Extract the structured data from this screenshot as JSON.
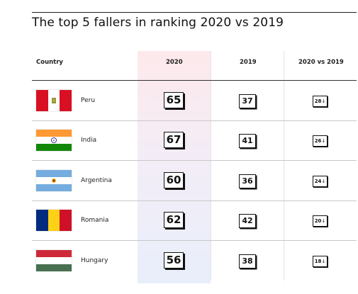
{
  "title": "The top 5 fallers in ranking 2020 vs 2019",
  "headers": {
    "country": "Country",
    "y2020": "2020",
    "y2019": "2019",
    "diff": "2020 vs 2019"
  },
  "arrow": "↓",
  "colors": {
    "highlight_top": "#fde9ec",
    "highlight_bottom": "#e9eefb"
  },
  "rows": [
    {
      "country": "Peru",
      "flag": "peru-flag",
      "y2020": "65",
      "y2019": "37",
      "diff": "28"
    },
    {
      "country": "India",
      "flag": "india-flag",
      "y2020": "67",
      "y2019": "41",
      "diff": "26"
    },
    {
      "country": "Argentina",
      "flag": "argentina-flag",
      "y2020": "60",
      "y2019": "36",
      "diff": "24"
    },
    {
      "country": "Romania",
      "flag": "romania-flag",
      "y2020": "62",
      "y2019": "42",
      "diff": "20"
    },
    {
      "country": "Hungary",
      "flag": "hungary-flag",
      "y2020": "56",
      "y2019": "38",
      "diff": "18"
    }
  ]
}
